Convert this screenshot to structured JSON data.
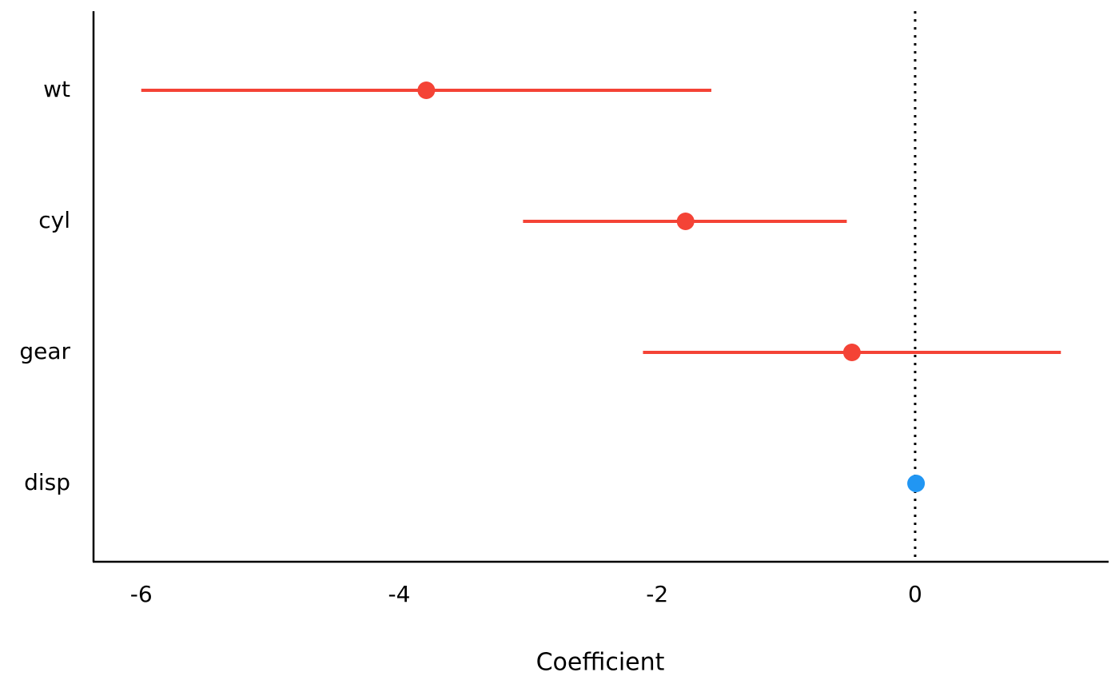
{
  "chart_data": {
    "type": "coefplot",
    "xlabel": "Coefficient",
    "categories": [
      "wt",
      "cyl",
      "gear",
      "disp"
    ],
    "values": [
      -3.79,
      -1.78,
      -0.49,
      0.007
    ],
    "low": [
      -6.0,
      -3.04,
      -2.11,
      -0.01
    ],
    "high": [
      -1.58,
      -0.53,
      1.13,
      0.02
    ],
    "colors": [
      "#f44336",
      "#f44336",
      "#f44336",
      "#2196f3"
    ],
    "xlim": [
      -6.37,
      1.5
    ],
    "xticks": [
      -6,
      -4,
      -2,
      0
    ],
    "vline": 0
  }
}
